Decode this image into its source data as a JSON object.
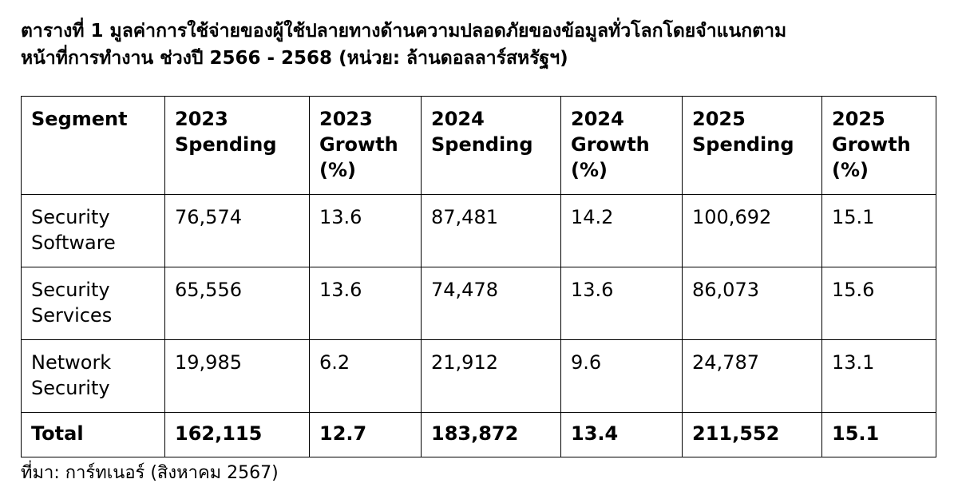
{
  "caption": {
    "line1": "ตารางที่ 1 มูลค่าการใช้จ่ายของผู้ใช้ปลายทางด้านความปลอดภัยของข้อมูลทั่วโลกโดยจำแนกตาม",
    "line2": "หน้าที่การทำงาน ช่วงปี 2566 - 2568 (หน่วย: ล้านดอลลาร์สหรัฐฯ)"
  },
  "table": {
    "headers": [
      [
        "Segment"
      ],
      [
        "2023",
        "Spending"
      ],
      [
        "2023",
        "Growth",
        "(%)"
      ],
      [
        "2024",
        "Spending"
      ],
      [
        "2024",
        "Growth",
        "(%)"
      ],
      [
        "2025",
        "Spending"
      ],
      [
        "2025",
        "Growth",
        "(%)"
      ]
    ],
    "rows": [
      {
        "segment": [
          "Security",
          "Software"
        ],
        "values": [
          "76,574",
          "13.6",
          "87,481",
          "14.2",
          "100,692",
          "15.1"
        ]
      },
      {
        "segment": [
          "Security",
          "Services"
        ],
        "values": [
          "65,556",
          "13.6",
          "74,478",
          "13.6",
          "86,073",
          "15.6"
        ]
      },
      {
        "segment": [
          "Network",
          "Security"
        ],
        "values": [
          "19,985",
          "6.2",
          "21,912",
          "9.6",
          "24,787",
          "13.1"
        ]
      }
    ],
    "total": {
      "label": "Total",
      "values": [
        "162,115",
        "12.7",
        "183,872",
        "13.4",
        "211,552",
        "15.1"
      ]
    }
  },
  "source": "ที่มา: การ์ทเนอร์ (สิงหาคม 2567)"
}
